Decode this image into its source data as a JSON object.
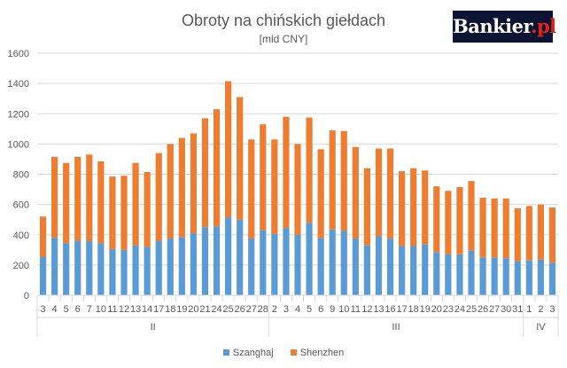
{
  "colors": {
    "szanghaj": "#5b9bd5",
    "shenzhen": "#ed7d31",
    "grid": "#d9d9d9",
    "text": "#595959"
  },
  "logo": {
    "name": "Bankier",
    "suffix": ".pl"
  },
  "chart_data": {
    "type": "bar",
    "stacked": true,
    "title": "Obroty na chińskich giełdach",
    "subtitle": "[mld CNY]",
    "ylim": [
      0,
      1600
    ],
    "yticks": [
      0,
      200,
      400,
      600,
      800,
      1000,
      1200,
      1400,
      1600
    ],
    "grid": true,
    "legend_position": "bottom",
    "categories": [
      "3",
      "4",
      "5",
      "6",
      "7",
      "10",
      "11",
      "12",
      "13",
      "14",
      "17",
      "18",
      "19",
      "20",
      "21",
      "24",
      "25",
      "26",
      "27",
      "28",
      "2",
      "3",
      "4",
      "5",
      "6",
      "9",
      "10",
      "11",
      "12",
      "13",
      "16",
      "17",
      "18",
      "19",
      "20",
      "23",
      "24",
      "25",
      "26",
      "27",
      "30",
      "31",
      "1",
      "2",
      "3"
    ],
    "group_labels": [
      {
        "label": "II",
        "start": 0,
        "end": 19
      },
      {
        "label": "III",
        "start": 20,
        "end": 41
      },
      {
        "label": "IV",
        "start": 42,
        "end": 44
      }
    ],
    "series": [
      {
        "name": "Szanghaj",
        "values": [
          255,
          380,
          345,
          360,
          360,
          345,
          305,
          300,
          330,
          320,
          360,
          375,
          385,
          410,
          450,
          455,
          515,
          500,
          375,
          430,
          405,
          445,
          400,
          480,
          380,
          435,
          425,
          375,
          330,
          390,
          375,
          325,
          325,
          335,
          285,
          270,
          270,
          295,
          250,
          250,
          245,
          225,
          230,
          235,
          215
        ]
      },
      {
        "name": "Shenzhen",
        "values": [
          265,
          535,
          530,
          555,
          570,
          540,
          480,
          490,
          545,
          495,
          580,
          625,
          655,
          660,
          720,
          775,
          900,
          810,
          655,
          700,
          625,
          735,
          600,
          695,
          585,
          655,
          660,
          605,
          510,
          580,
          595,
          495,
          515,
          490,
          435,
          420,
          445,
          460,
          395,
          390,
          395,
          350,
          360,
          365,
          365
        ]
      }
    ]
  }
}
